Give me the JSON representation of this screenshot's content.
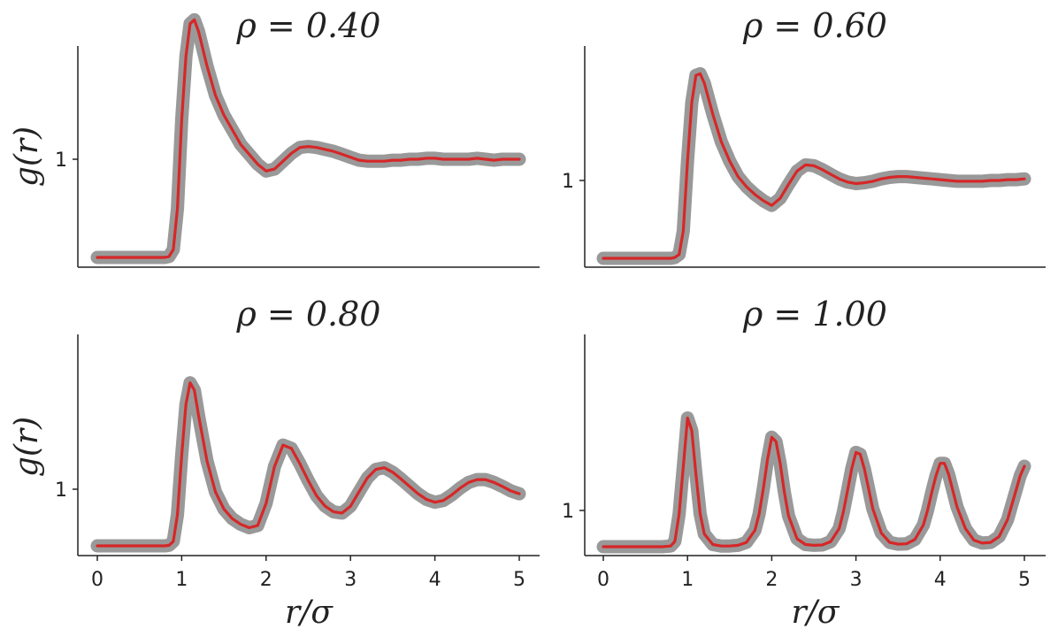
{
  "chart_data": [
    {
      "type": "line",
      "title": "ρ = 0.40",
      "ylabel": "g(r)",
      "xlabel": "",
      "xlim": [
        0,
        5
      ],
      "y_ticks": [
        {
          "value": 1,
          "label": "1"
        }
      ],
      "x_ticks": [],
      "series": [
        {
          "color": "#999999",
          "x": [
            0.0,
            0.4,
            0.8,
            0.85,
            0.9,
            0.95,
            1.0,
            1.05,
            1.1,
            1.15,
            1.2,
            1.3,
            1.4,
            1.5,
            1.6,
            1.7,
            1.8,
            1.9,
            2.0,
            2.1,
            2.2,
            2.3,
            2.4,
            2.5,
            2.6,
            2.7,
            2.8,
            2.9,
            3.0,
            3.1,
            3.2,
            3.3,
            3.4,
            3.5,
            3.6,
            3.7,
            3.8,
            3.9,
            4.0,
            4.1,
            4.2,
            4.3,
            4.4,
            4.5,
            4.6,
            4.7,
            4.8,
            4.9,
            5.0
          ],
          "y": [
            0.0,
            0.0,
            0.0,
            0.01,
            0.08,
            0.5,
            1.4,
            2.05,
            2.38,
            2.42,
            2.3,
            1.95,
            1.65,
            1.45,
            1.3,
            1.15,
            1.05,
            0.95,
            0.88,
            0.9,
            0.98,
            1.06,
            1.12,
            1.13,
            1.12,
            1.1,
            1.08,
            1.05,
            1.02,
            0.99,
            0.98,
            0.98,
            0.98,
            0.99,
            0.99,
            1.0,
            1.0,
            1.01,
            1.01,
            1.0,
            1.0,
            1.0,
            1.0,
            1.01,
            1.0,
            0.99,
            1.0,
            1.0,
            1.0
          ]
        },
        {
          "color": "#d62728",
          "x": [
            0.0,
            0.4,
            0.8,
            0.85,
            0.9,
            0.95,
            1.0,
            1.05,
            1.1,
            1.15,
            1.2,
            1.3,
            1.4,
            1.5,
            1.6,
            1.7,
            1.8,
            1.9,
            2.0,
            2.1,
            2.2,
            2.3,
            2.4,
            2.5,
            2.6,
            2.7,
            2.8,
            2.9,
            3.0,
            3.1,
            3.2,
            3.3,
            3.4,
            3.5,
            3.6,
            3.7,
            3.8,
            3.9,
            4.0,
            4.1,
            4.2,
            4.3,
            4.4,
            4.5,
            4.6,
            4.7,
            4.8,
            4.9,
            5.0
          ],
          "y": [
            0.0,
            0.0,
            0.0,
            0.01,
            0.08,
            0.5,
            1.4,
            2.05,
            2.38,
            2.42,
            2.3,
            1.95,
            1.65,
            1.45,
            1.3,
            1.15,
            1.05,
            0.95,
            0.88,
            0.9,
            0.98,
            1.06,
            1.12,
            1.13,
            1.12,
            1.1,
            1.08,
            1.05,
            1.02,
            0.99,
            0.98,
            0.98,
            0.98,
            0.99,
            0.99,
            1.0,
            1.0,
            1.01,
            1.01,
            1.0,
            1.0,
            1.0,
            1.0,
            1.01,
            1.0,
            0.99,
            1.0,
            1.0,
            1.0
          ]
        }
      ]
    },
    {
      "type": "line",
      "title": "ρ = 0.60",
      "ylabel": "",
      "xlabel": "",
      "xlim": [
        0,
        5
      ],
      "y_ticks": [
        {
          "value": 1,
          "label": "1"
        }
      ],
      "x_ticks": [],
      "series": [
        {
          "color": "#999999",
          "x": [
            0.0,
            0.4,
            0.8,
            0.85,
            0.9,
            0.95,
            1.0,
            1.05,
            1.1,
            1.15,
            1.2,
            1.3,
            1.4,
            1.5,
            1.6,
            1.7,
            1.8,
            1.9,
            2.0,
            2.1,
            2.2,
            2.3,
            2.4,
            2.5,
            2.6,
            2.7,
            2.8,
            2.9,
            3.0,
            3.1,
            3.2,
            3.3,
            3.4,
            3.5,
            3.6,
            3.7,
            3.8,
            3.9,
            4.0,
            4.1,
            4.2,
            4.3,
            4.4,
            4.5,
            4.6,
            4.7,
            4.8,
            4.9,
            5.0
          ],
          "y": [
            0.0,
            0.0,
            0.0,
            0.01,
            0.05,
            0.35,
            1.25,
            2.0,
            2.35,
            2.37,
            2.25,
            1.85,
            1.5,
            1.25,
            1.05,
            0.92,
            0.82,
            0.74,
            0.68,
            0.77,
            0.95,
            1.12,
            1.2,
            1.19,
            1.14,
            1.08,
            1.02,
            0.98,
            0.96,
            0.97,
            0.99,
            1.02,
            1.04,
            1.05,
            1.05,
            1.04,
            1.03,
            1.02,
            1.01,
            1.0,
            0.99,
            0.99,
            0.99,
            0.99,
            1.0,
            1.0,
            1.01,
            1.01,
            1.02
          ]
        },
        {
          "color": "#d62728",
          "x": [
            0.0,
            0.4,
            0.8,
            0.85,
            0.9,
            0.95,
            1.0,
            1.05,
            1.1,
            1.15,
            1.2,
            1.3,
            1.4,
            1.5,
            1.6,
            1.7,
            1.8,
            1.9,
            2.0,
            2.1,
            2.2,
            2.3,
            2.4,
            2.5,
            2.6,
            2.7,
            2.8,
            2.9,
            3.0,
            3.1,
            3.2,
            3.3,
            3.4,
            3.5,
            3.6,
            3.7,
            3.8,
            3.9,
            4.0,
            4.1,
            4.2,
            4.3,
            4.4,
            4.5,
            4.6,
            4.7,
            4.8,
            4.9,
            5.0
          ],
          "y": [
            0.0,
            0.0,
            0.0,
            0.01,
            0.05,
            0.35,
            1.25,
            2.0,
            2.35,
            2.37,
            2.25,
            1.85,
            1.5,
            1.25,
            1.05,
            0.92,
            0.82,
            0.74,
            0.68,
            0.77,
            0.95,
            1.12,
            1.2,
            1.19,
            1.14,
            1.08,
            1.02,
            0.98,
            0.96,
            0.97,
            0.99,
            1.02,
            1.04,
            1.05,
            1.05,
            1.04,
            1.03,
            1.02,
            1.01,
            1.0,
            0.99,
            0.99,
            0.99,
            0.99,
            1.0,
            1.0,
            1.01,
            1.01,
            1.02
          ]
        }
      ]
    },
    {
      "type": "line",
      "title": "ρ = 0.80",
      "ylabel": "g(r)",
      "xlabel": "r/σ",
      "xlim": [
        0,
        5
      ],
      "y_ticks": [
        {
          "value": 1,
          "label": "1"
        }
      ],
      "x_ticks": [
        {
          "value": 0,
          "label": "0"
        },
        {
          "value": 1,
          "label": "1"
        },
        {
          "value": 2,
          "label": "2"
        },
        {
          "value": 3,
          "label": "3"
        },
        {
          "value": 4,
          "label": "4"
        },
        {
          "value": 5,
          "label": "5"
        }
      ],
      "series": [
        {
          "color": "#999999",
          "x": [
            0.0,
            0.4,
            0.8,
            0.85,
            0.9,
            0.95,
            1.0,
            1.05,
            1.1,
            1.15,
            1.2,
            1.3,
            1.4,
            1.5,
            1.6,
            1.7,
            1.8,
            1.9,
            2.0,
            2.1,
            2.2,
            2.3,
            2.4,
            2.5,
            2.6,
            2.7,
            2.8,
            2.9,
            3.0,
            3.1,
            3.2,
            3.3,
            3.4,
            3.5,
            3.6,
            3.7,
            3.8,
            3.9,
            4.0,
            4.1,
            4.2,
            4.3,
            4.4,
            4.5,
            4.6,
            4.7,
            4.8,
            4.9,
            5.0
          ],
          "y": [
            0.0,
            0.0,
            0.0,
            0.01,
            0.08,
            0.55,
            1.6,
            2.5,
            2.88,
            2.75,
            2.3,
            1.5,
            0.95,
            0.65,
            0.48,
            0.38,
            0.32,
            0.36,
            0.75,
            1.4,
            1.78,
            1.72,
            1.45,
            1.15,
            0.88,
            0.7,
            0.6,
            0.58,
            0.7,
            0.95,
            1.2,
            1.35,
            1.38,
            1.3,
            1.18,
            1.05,
            0.92,
            0.82,
            0.77,
            0.8,
            0.9,
            1.02,
            1.12,
            1.17,
            1.17,
            1.12,
            1.05,
            0.97,
            0.92
          ]
        },
        {
          "color": "#d62728",
          "x": [
            0.0,
            0.4,
            0.8,
            0.85,
            0.9,
            0.95,
            1.0,
            1.05,
            1.1,
            1.15,
            1.2,
            1.3,
            1.4,
            1.5,
            1.6,
            1.7,
            1.8,
            1.9,
            2.0,
            2.1,
            2.2,
            2.3,
            2.4,
            2.5,
            2.6,
            2.7,
            2.8,
            2.9,
            3.0,
            3.1,
            3.2,
            3.3,
            3.4,
            3.5,
            3.6,
            3.7,
            3.8,
            3.9,
            4.0,
            4.1,
            4.2,
            4.3,
            4.4,
            4.5,
            4.6,
            4.7,
            4.8,
            4.9,
            5.0
          ],
          "y": [
            0.0,
            0.0,
            0.0,
            0.01,
            0.08,
            0.55,
            1.6,
            2.5,
            2.88,
            2.75,
            2.3,
            1.5,
            0.95,
            0.65,
            0.48,
            0.38,
            0.32,
            0.36,
            0.75,
            1.4,
            1.78,
            1.72,
            1.45,
            1.15,
            0.88,
            0.7,
            0.6,
            0.58,
            0.7,
            0.95,
            1.2,
            1.35,
            1.38,
            1.3,
            1.18,
            1.05,
            0.92,
            0.82,
            0.77,
            0.8,
            0.9,
            1.02,
            1.12,
            1.17,
            1.17,
            1.12,
            1.05,
            0.97,
            0.92
          ]
        }
      ]
    },
    {
      "type": "line",
      "title": "ρ = 1.00",
      "ylabel": "",
      "xlabel": "r/σ",
      "xlim": [
        0,
        5
      ],
      "y_ticks": [
        {
          "value": 1,
          "label": "1"
        }
      ],
      "x_ticks": [
        {
          "value": 0,
          "label": "0"
        },
        {
          "value": 1,
          "label": "1"
        },
        {
          "value": 2,
          "label": "2"
        },
        {
          "value": 3,
          "label": "3"
        },
        {
          "value": 4,
          "label": "4"
        },
        {
          "value": 5,
          "label": "5"
        }
      ],
      "series": [
        {
          "color": "#999999",
          "x": [
            0.0,
            0.4,
            0.7,
            0.8,
            0.85,
            0.9,
            0.95,
            1.0,
            1.05,
            1.1,
            1.15,
            1.2,
            1.3,
            1.4,
            1.5,
            1.6,
            1.7,
            1.8,
            1.85,
            1.9,
            1.95,
            2.0,
            2.05,
            2.1,
            2.15,
            2.2,
            2.3,
            2.4,
            2.5,
            2.6,
            2.7,
            2.8,
            2.85,
            2.9,
            2.95,
            3.0,
            3.05,
            3.1,
            3.15,
            3.2,
            3.3,
            3.4,
            3.5,
            3.6,
            3.7,
            3.8,
            3.85,
            3.9,
            3.95,
            4.0,
            4.05,
            4.1,
            4.15,
            4.2,
            4.3,
            4.4,
            4.5,
            4.6,
            4.7,
            4.8,
            4.85,
            4.9,
            4.95,
            5.0
          ],
          "y": [
            0.0,
            0.0,
            0.0,
            0.02,
            0.15,
            0.9,
            2.2,
            3.55,
            3.2,
            2.0,
            0.9,
            0.35,
            0.06,
            0.02,
            0.02,
            0.04,
            0.12,
            0.45,
            0.9,
            1.6,
            2.4,
            3.02,
            2.9,
            2.3,
            1.5,
            0.85,
            0.22,
            0.06,
            0.04,
            0.05,
            0.14,
            0.5,
            0.95,
            1.55,
            2.15,
            2.6,
            2.55,
            2.15,
            1.6,
            1.05,
            0.38,
            0.12,
            0.07,
            0.08,
            0.2,
            0.6,
            1.0,
            1.5,
            1.95,
            2.3,
            2.3,
            2.0,
            1.55,
            1.1,
            0.5,
            0.18,
            0.1,
            0.12,
            0.28,
            0.75,
            1.15,
            1.55,
            1.95,
            2.22
          ]
        },
        {
          "color": "#d62728",
          "x": [
            0.0,
            0.4,
            0.7,
            0.8,
            0.85,
            0.9,
            0.95,
            1.0,
            1.05,
            1.1,
            1.15,
            1.2,
            1.3,
            1.4,
            1.5,
            1.6,
            1.7,
            1.8,
            1.85,
            1.9,
            1.95,
            2.0,
            2.05,
            2.1,
            2.15,
            2.2,
            2.3,
            2.4,
            2.5,
            2.6,
            2.7,
            2.8,
            2.85,
            2.9,
            2.95,
            3.0,
            3.05,
            3.1,
            3.15,
            3.2,
            3.3,
            3.4,
            3.5,
            3.6,
            3.7,
            3.8,
            3.85,
            3.9,
            3.95,
            4.0,
            4.05,
            4.1,
            4.15,
            4.2,
            4.3,
            4.4,
            4.5,
            4.6,
            4.7,
            4.8,
            4.85,
            4.9,
            4.95,
            5.0
          ],
          "y": [
            0.0,
            0.0,
            0.0,
            0.02,
            0.15,
            0.9,
            2.2,
            3.55,
            3.2,
            2.0,
            0.9,
            0.35,
            0.06,
            0.02,
            0.02,
            0.04,
            0.12,
            0.45,
            0.9,
            1.6,
            2.4,
            3.02,
            2.9,
            2.3,
            1.5,
            0.85,
            0.22,
            0.06,
            0.04,
            0.05,
            0.14,
            0.5,
            0.95,
            1.55,
            2.15,
            2.6,
            2.55,
            2.15,
            1.6,
            1.05,
            0.38,
            0.12,
            0.07,
            0.08,
            0.2,
            0.6,
            1.0,
            1.5,
            1.95,
            2.3,
            2.3,
            2.0,
            1.55,
            1.1,
            0.5,
            0.18,
            0.1,
            0.12,
            0.28,
            0.75,
            1.15,
            1.55,
            1.95,
            2.22
          ]
        }
      ]
    }
  ]
}
